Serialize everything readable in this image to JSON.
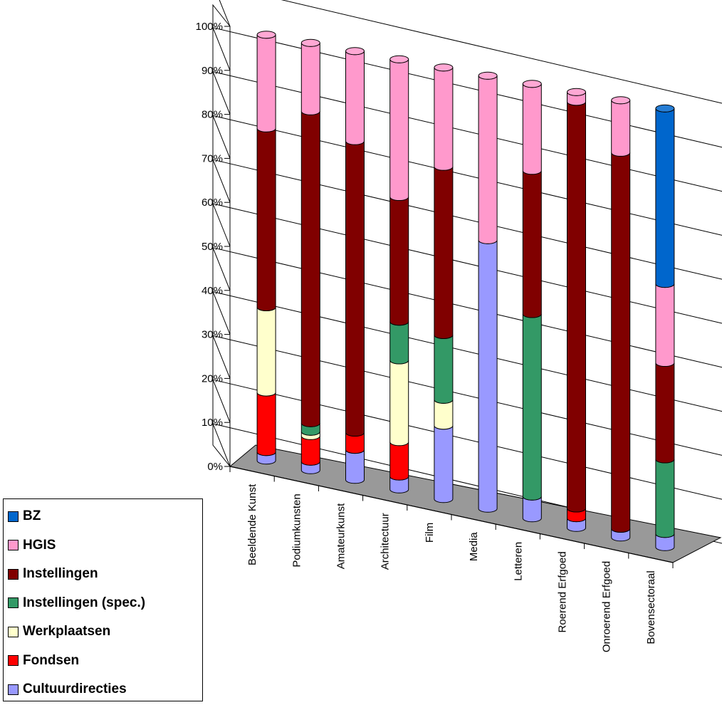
{
  "chart_data": {
    "type": "bar",
    "stacked": true,
    "percent_stacked": true,
    "three_d": true,
    "title": "",
    "xlabel": "",
    "ylabel": "",
    "ylim": [
      0,
      100
    ],
    "y_ticks": [
      "0%",
      "10%",
      "20%",
      "30%",
      "40%",
      "50%",
      "60%",
      "70%",
      "80%",
      "90%",
      "100%"
    ],
    "grid": true,
    "legend_position": "bottom-left",
    "categories": [
      "Beeldende Kunst",
      "Podiumkunsten",
      "Amateurkunst",
      "Architectuur",
      "Film",
      "Media",
      "Letteren",
      "Roerend Erfgoed",
      "Onroerend Erfgoed",
      "Bovensectoraal"
    ],
    "series": [
      {
        "name": "Cultuurdirecties",
        "color": "#9999ff",
        "values": [
          2,
          2,
          7,
          3,
          17,
          62,
          5,
          2,
          2,
          3
        ]
      },
      {
        "name": "Fondsen",
        "color": "#ff0000",
        "values": [
          14,
          6,
          4,
          8,
          0,
          0,
          0,
          2,
          0,
          0
        ]
      },
      {
        "name": "Werkplaatsen",
        "color": "#ffffcc",
        "values": [
          20,
          1,
          0,
          19,
          6,
          0,
          0,
          0,
          0,
          0
        ]
      },
      {
        "name": "Instellingen (spec.)",
        "color": "#339966",
        "values": [
          0,
          2,
          0,
          9,
          15,
          0,
          42,
          0,
          0,
          17
        ]
      },
      {
        "name": "Instellingen",
        "color": "#800000",
        "values": [
          42,
          73,
          68,
          29,
          39,
          0,
          33,
          84,
          86,
          22
        ]
      },
      {
        "name": "HGIS",
        "color": "#ff99cc",
        "values": [
          22,
          16,
          21,
          32,
          23,
          38,
          20,
          2,
          12,
          18
        ]
      },
      {
        "name": "BZ",
        "color": "#0066cc",
        "values": [
          0,
          0,
          0,
          0,
          0,
          0,
          0,
          0,
          0,
          40
        ]
      }
    ]
  },
  "legend": {
    "items": [
      {
        "label": "BZ",
        "color": "#0066cc"
      },
      {
        "label": "HGIS",
        "color": "#ff99cc"
      },
      {
        "label": "Instellingen",
        "color": "#800000"
      },
      {
        "label": "Instellingen (spec.)",
        "color": "#339966"
      },
      {
        "label": "Werkplaatsen",
        "color": "#ffffcc"
      },
      {
        "label": "Fondsen",
        "color": "#ff0000"
      },
      {
        "label": "Cultuurdirecties",
        "color": "#9999ff"
      }
    ]
  }
}
